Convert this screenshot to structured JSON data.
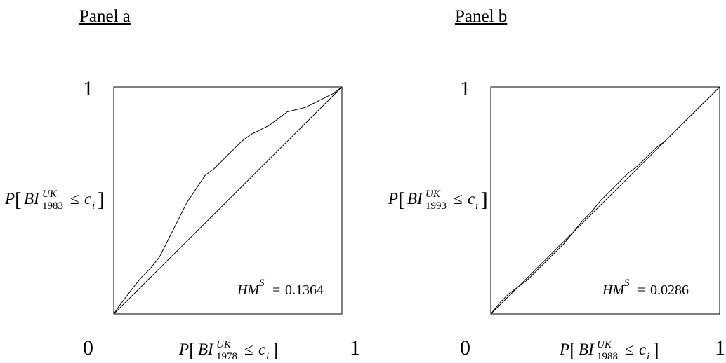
{
  "panels": [
    {
      "title": "Panel a",
      "y_axis": {
        "max_label": "1",
        "label": {
          "P": "P",
          "var": "BI",
          "sup": "UK",
          "year": "1983",
          "leq": "≤",
          "c": "c",
          "i": "i"
        }
      },
      "x_axis": {
        "min_label": "0",
        "max_label": "1",
        "label": {
          "P": "P",
          "var": "BI",
          "sup": "UK",
          "year": "1978",
          "leq": "≤",
          "c": "c",
          "i": "i"
        }
      },
      "stat": {
        "name": "HM",
        "sup": "S",
        "eq": "=",
        "value": "0.1364"
      }
    },
    {
      "title": "Panel b",
      "y_axis": {
        "max_label": "1",
        "label": {
          "P": "P",
          "var": "BI",
          "sup": "UK",
          "year": "1993",
          "leq": "≤",
          "c": "c",
          "i": "i"
        }
      },
      "x_axis": {
        "min_label": "0",
        "max_label": "1",
        "label": {
          "P": "P",
          "var": "BI",
          "sup": "UK",
          "year": "1988",
          "leq": "≤",
          "c": "c",
          "i": "i"
        }
      },
      "stat": {
        "name": "HM",
        "sup": "S",
        "eq": "=",
        "value": "0.0286"
      }
    }
  ],
  "chart_data": [
    {
      "type": "line",
      "title": "Panel a",
      "xlabel": "P[BI_1978^UK ≤ c_i]",
      "ylabel": "P[BI_1983^UK ≤ c_i]",
      "xlim": [
        0,
        1
      ],
      "ylim": [
        0,
        1
      ],
      "grid": false,
      "series": [
        {
          "x": [
            0,
            1
          ],
          "y": [
            0,
            1
          ]
        },
        {
          "x": [
            0,
            0.02,
            0.05,
            0.08,
            0.12,
            0.16,
            0.2,
            0.24,
            0.28,
            0.32,
            0.36,
            0.4,
            0.44,
            0.48,
            0.52,
            0.56,
            0.6,
            0.64,
            0.68,
            0.72,
            0.76,
            0.8,
            0.84,
            0.88,
            0.92,
            0.96,
            1.0
          ],
          "y": [
            0,
            0.03,
            0.07,
            0.11,
            0.16,
            0.2,
            0.25,
            0.33,
            0.41,
            0.49,
            0.55,
            0.61,
            0.64,
            0.68,
            0.72,
            0.76,
            0.79,
            0.81,
            0.83,
            0.86,
            0.89,
            0.9,
            0.91,
            0.93,
            0.95,
            0.97,
            1.0
          ]
        }
      ],
      "annotation": "HM^S = 0.1364"
    },
    {
      "type": "line",
      "title": "Panel b",
      "xlabel": "P[BI_1988^UK ≤ c_i]",
      "ylabel": "P[BI_1993^UK ≤ c_i]",
      "xlim": [
        0,
        1
      ],
      "ylim": [
        0,
        1
      ],
      "grid": false,
      "series": [
        {
          "x": [
            0,
            1
          ],
          "y": [
            0,
            1
          ]
        },
        {
          "x": [
            0,
            0.04,
            0.08,
            0.12,
            0.16,
            0.2,
            0.24,
            0.28,
            0.32,
            0.36,
            0.4,
            0.44,
            0.48,
            0.52,
            0.56,
            0.6,
            0.64,
            0.68,
            0.72,
            0.76,
            0.8,
            0.84,
            0.88,
            0.92,
            0.96,
            1.0
          ],
          "y": [
            0,
            0.05,
            0.09,
            0.12,
            0.15,
            0.19,
            0.23,
            0.27,
            0.31,
            0.36,
            0.41,
            0.45,
            0.5,
            0.54,
            0.58,
            0.62,
            0.65,
            0.69,
            0.73,
            0.76,
            0.8,
            0.84,
            0.88,
            0.92,
            0.96,
            1.0
          ]
        }
      ],
      "annotation": "HM^S = 0.0286"
    }
  ]
}
